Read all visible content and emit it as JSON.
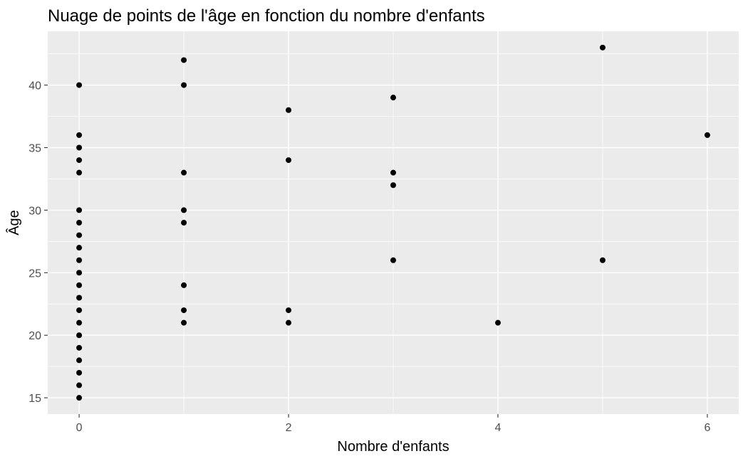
{
  "chart_data": {
    "type": "scatter",
    "title": "Nuage de points de l'âge en fonction du nombre d'enfants",
    "xlabel": "Nombre d'enfants",
    "ylabel": "Âge",
    "xlim": [
      -0.3,
      6.3
    ],
    "ylim": [
      13.7,
      44.3
    ],
    "x_ticks": [
      0,
      2,
      4,
      6
    ],
    "x_minor_ticks": [
      1,
      3,
      5
    ],
    "y_ticks": [
      15,
      20,
      25,
      30,
      35,
      40
    ],
    "y_minor_ticks": [
      17.5,
      22.5,
      27.5,
      32.5,
      37.5,
      42.5
    ],
    "grid": true,
    "colors": {
      "panel": "#ebebeb",
      "grid": "#ffffff",
      "point": "#000000",
      "tick_text": "#4d4d4d"
    },
    "points": [
      {
        "x": 0,
        "y": 15
      },
      {
        "x": 0,
        "y": 16
      },
      {
        "x": 0,
        "y": 17
      },
      {
        "x": 0,
        "y": 18
      },
      {
        "x": 0,
        "y": 19
      },
      {
        "x": 0,
        "y": 20
      },
      {
        "x": 0,
        "y": 21
      },
      {
        "x": 0,
        "y": 22
      },
      {
        "x": 0,
        "y": 23
      },
      {
        "x": 0,
        "y": 24
      },
      {
        "x": 0,
        "y": 25
      },
      {
        "x": 0,
        "y": 26
      },
      {
        "x": 0,
        "y": 27
      },
      {
        "x": 0,
        "y": 28
      },
      {
        "x": 0,
        "y": 29
      },
      {
        "x": 0,
        "y": 30
      },
      {
        "x": 0,
        "y": 33
      },
      {
        "x": 0,
        "y": 34
      },
      {
        "x": 0,
        "y": 35
      },
      {
        "x": 0,
        "y": 36
      },
      {
        "x": 0,
        "y": 40
      },
      {
        "x": 1,
        "y": 21
      },
      {
        "x": 1,
        "y": 22
      },
      {
        "x": 1,
        "y": 24
      },
      {
        "x": 1,
        "y": 29
      },
      {
        "x": 1,
        "y": 30
      },
      {
        "x": 1,
        "y": 33
      },
      {
        "x": 1,
        "y": 40
      },
      {
        "x": 1,
        "y": 42
      },
      {
        "x": 2,
        "y": 21
      },
      {
        "x": 2,
        "y": 22
      },
      {
        "x": 2,
        "y": 34
      },
      {
        "x": 2,
        "y": 38
      },
      {
        "x": 3,
        "y": 26
      },
      {
        "x": 3,
        "y": 32
      },
      {
        "x": 3,
        "y": 33
      },
      {
        "x": 3,
        "y": 39
      },
      {
        "x": 4,
        "y": 21
      },
      {
        "x": 5,
        "y": 26
      },
      {
        "x": 5,
        "y": 43
      },
      {
        "x": 6,
        "y": 36
      }
    ]
  }
}
